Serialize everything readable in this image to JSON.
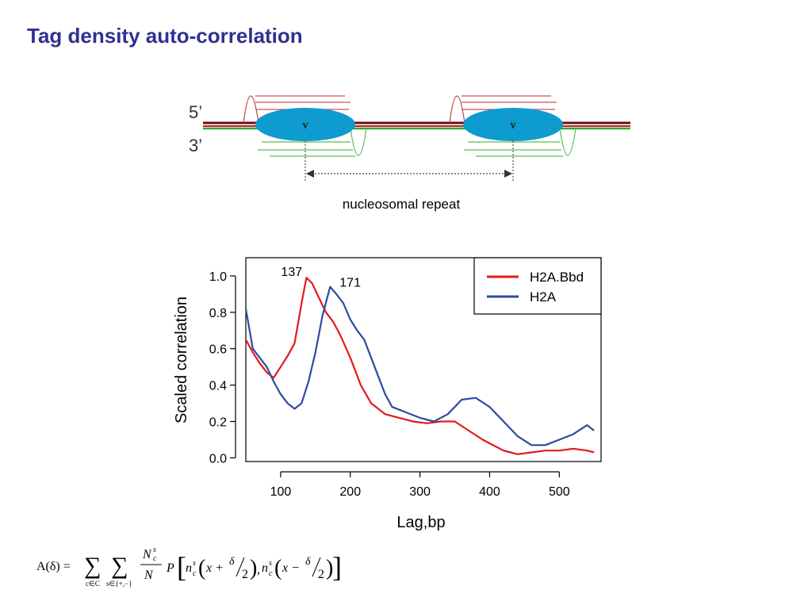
{
  "slide": {
    "title": "Tag density auto-correlation"
  },
  "diagram": {
    "strand_top": "5’",
    "strand_bottom": "3’",
    "nucleosome_label": "v",
    "repeat_label": "nucleosomal repeat",
    "colors": {
      "forward": "#b83232",
      "reverse": "#33a833",
      "nucleosome": "#0e9bd0"
    }
  },
  "chart_data": {
    "type": "line",
    "xlabel": "Lag,bp",
    "ylabel": "Scaled correlation",
    "xlim": [
      50,
      560
    ],
    "ylim": [
      -0.02,
      1.1
    ],
    "xticks": [
      100,
      200,
      300,
      400,
      500
    ],
    "yticks": [
      0.0,
      0.2,
      0.4,
      0.6,
      0.8,
      1.0
    ],
    "ytick_labels": [
      "0.0",
      "0.2",
      "0.4",
      "0.6",
      "0.8",
      "1.0"
    ],
    "grid": false,
    "legend_position": "top-right",
    "annotations": [
      {
        "text": "137",
        "x": 137,
        "y": 0.99
      },
      {
        "text": "171",
        "x": 171,
        "y": 0.95
      }
    ],
    "series": [
      {
        "name": "H2A.Bbd",
        "color": "#e31a1c",
        "x": [
          50,
          60,
          70,
          80,
          90,
          100,
          110,
          120,
          130,
          137,
          145,
          155,
          165,
          175,
          185,
          200,
          215,
          230,
          250,
          270,
          290,
          310,
          330,
          350,
          370,
          390,
          400,
          410,
          420,
          430,
          440,
          460,
          480,
          500,
          520,
          540,
          550
        ],
        "y": [
          0.65,
          0.58,
          0.52,
          0.47,
          0.44,
          0.5,
          0.56,
          0.63,
          0.85,
          0.99,
          0.96,
          0.88,
          0.8,
          0.75,
          0.68,
          0.55,
          0.4,
          0.3,
          0.24,
          0.22,
          0.2,
          0.19,
          0.2,
          0.2,
          0.15,
          0.1,
          0.08,
          0.06,
          0.04,
          0.03,
          0.02,
          0.03,
          0.04,
          0.04,
          0.05,
          0.04,
          0.03
        ]
      },
      {
        "name": "H2A",
        "color": "#2c4ba0",
        "x": [
          50,
          60,
          70,
          80,
          90,
          100,
          110,
          120,
          130,
          140,
          150,
          160,
          171,
          180,
          190,
          200,
          210,
          220,
          230,
          240,
          250,
          260,
          280,
          300,
          320,
          340,
          360,
          380,
          400,
          420,
          440,
          460,
          480,
          500,
          520,
          540,
          550
        ],
        "y": [
          0.82,
          0.6,
          0.55,
          0.5,
          0.42,
          0.35,
          0.3,
          0.27,
          0.3,
          0.42,
          0.58,
          0.78,
          0.94,
          0.9,
          0.85,
          0.76,
          0.7,
          0.65,
          0.55,
          0.45,
          0.35,
          0.28,
          0.25,
          0.22,
          0.2,
          0.24,
          0.32,
          0.33,
          0.28,
          0.2,
          0.12,
          0.07,
          0.07,
          0.1,
          0.13,
          0.18,
          0.15
        ]
      }
    ]
  },
  "formula": {
    "lhs": "A(δ) =",
    "sum1_sub": "c∈C",
    "sum2_sub": "s∈{+,−}",
    "frac_num": "N",
    "frac_num_sup": "s",
    "frac_num_sub": "c",
    "frac_den": "N",
    "body_P": "P",
    "body_n1": "n",
    "body_sup": "s",
    "body_sub": "c",
    "arg1": "x +",
    "arg2": "x −",
    "delta": "δ",
    "two": "2",
    "comma": ","
  }
}
